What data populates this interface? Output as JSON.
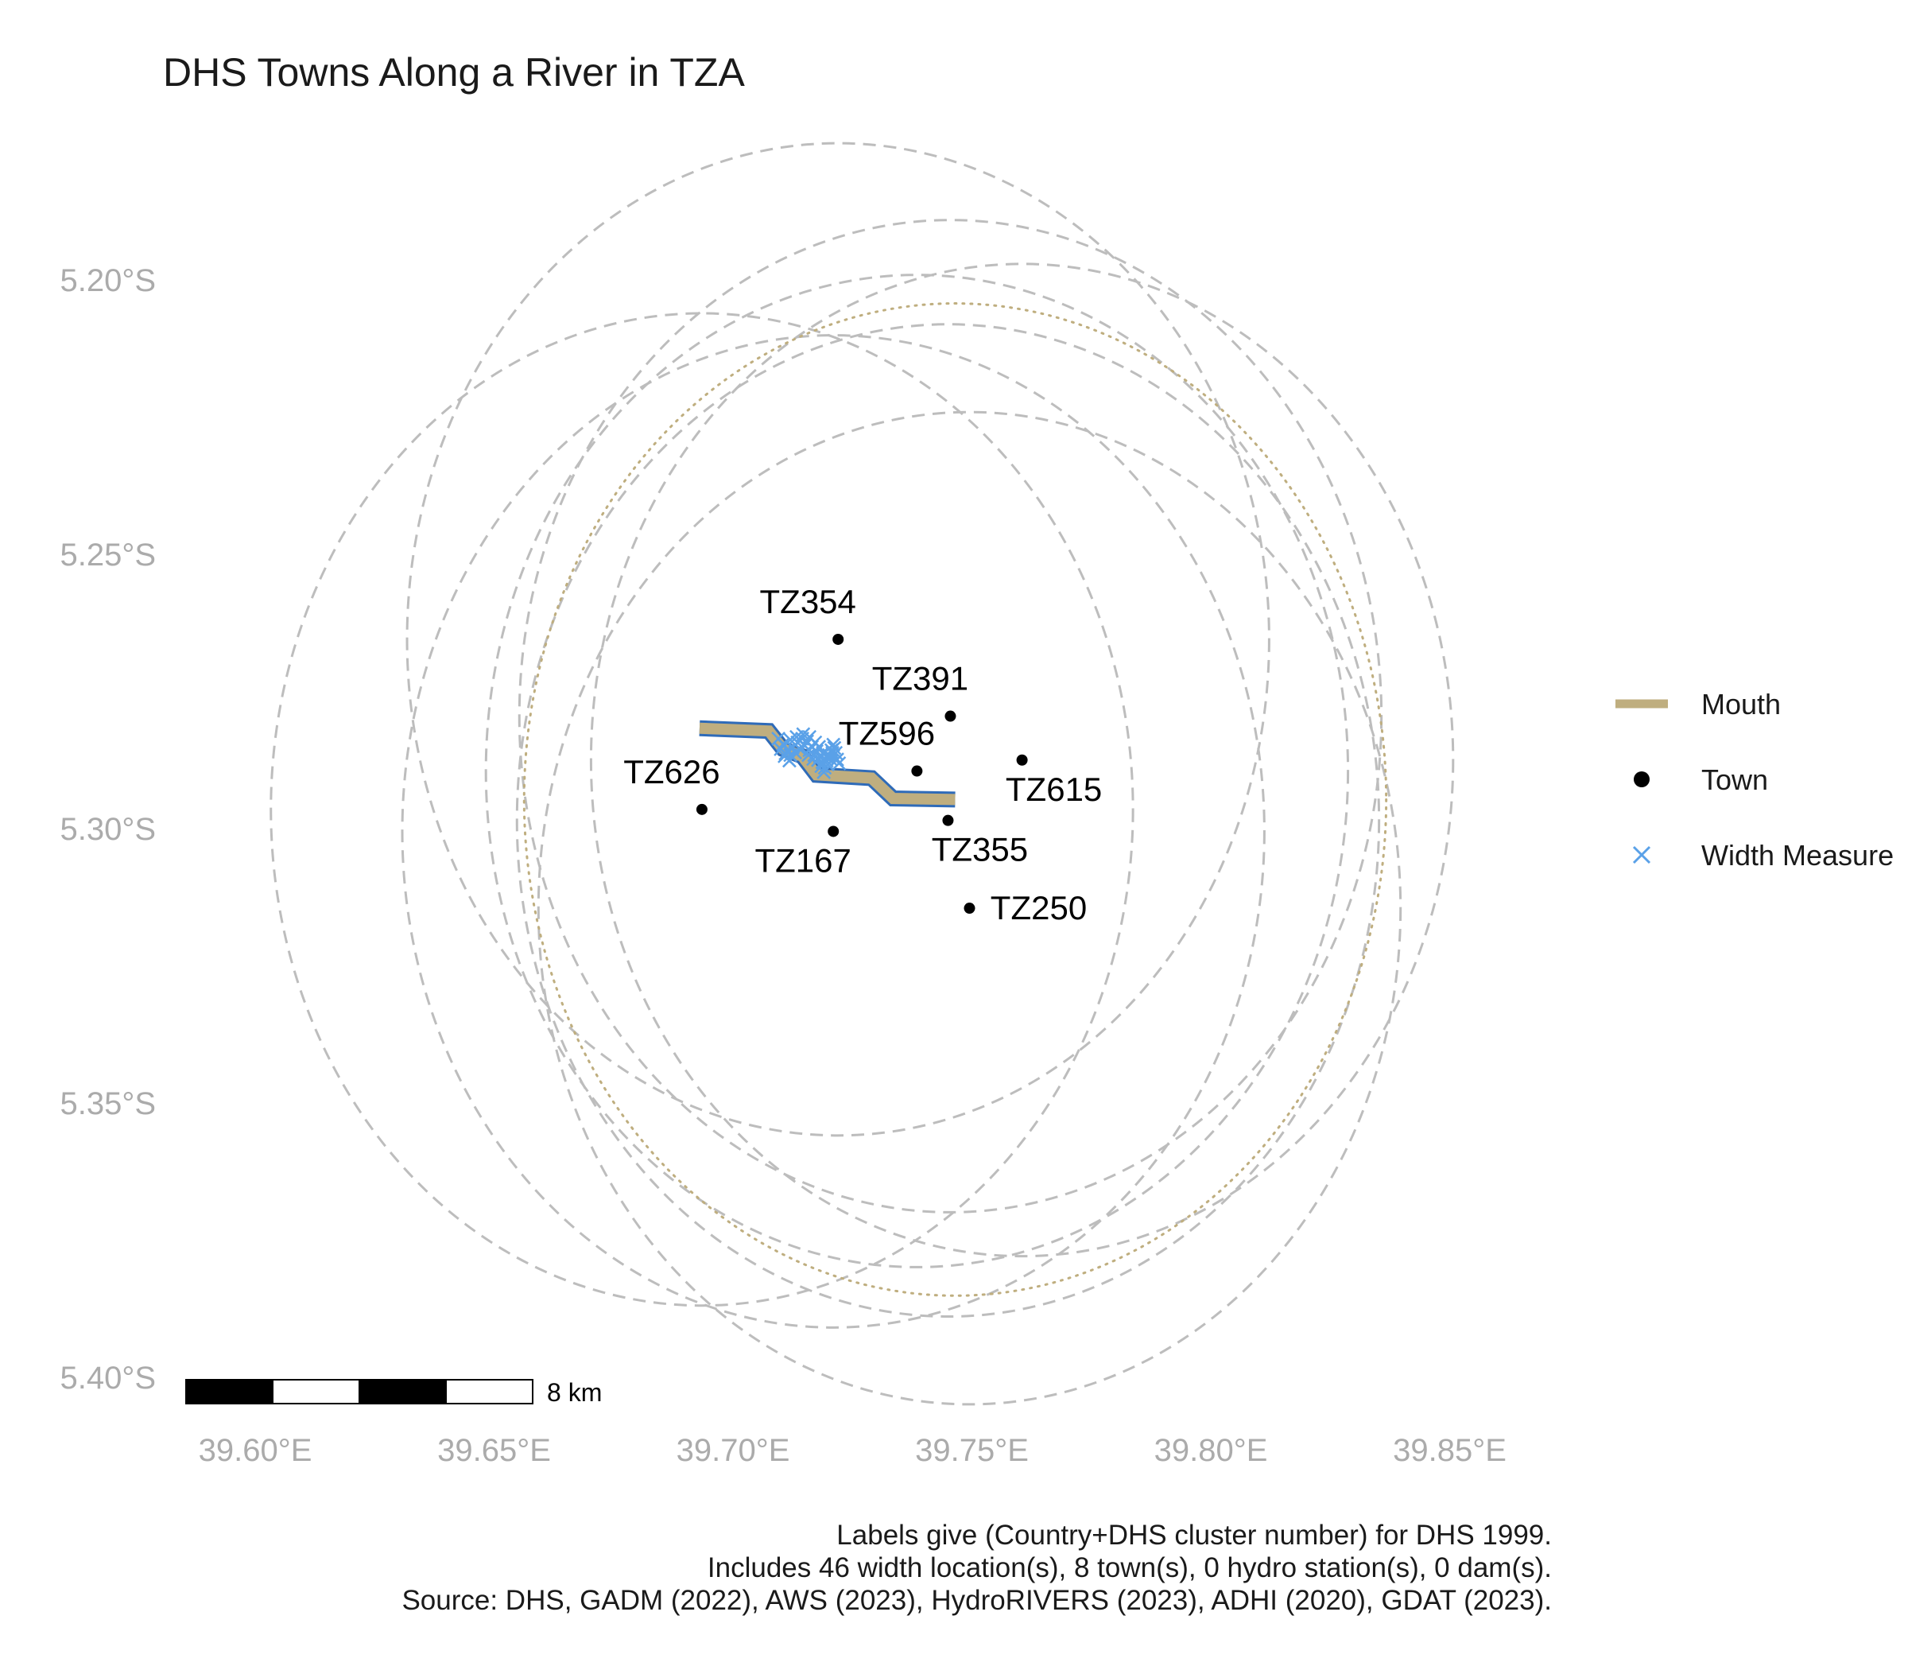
{
  "title": "DHS Towns Along a River in TZA",
  "chart_data": {
    "type": "map",
    "x_ticks": [
      {
        "value": 39.6,
        "label": "39.60°E"
      },
      {
        "value": 39.65,
        "label": "39.65°E"
      },
      {
        "value": 39.7,
        "label": "39.70°E"
      },
      {
        "value": 39.75,
        "label": "39.75°E"
      },
      {
        "value": 39.8,
        "label": "39.80°E"
      },
      {
        "value": 39.85,
        "label": "39.85°E"
      }
    ],
    "y_ticks": [
      {
        "value": -5.2,
        "label": "5.20°S"
      },
      {
        "value": -5.25,
        "label": "5.25°S"
      },
      {
        "value": -5.3,
        "label": "5.30°S"
      },
      {
        "value": -5.35,
        "label": "5.35°S"
      },
      {
        "value": -5.4,
        "label": "5.40°S"
      }
    ],
    "towns": [
      {
        "label": "TZ354",
        "lon": 39.722,
        "lat": -5.2655
      },
      {
        "label": "TZ391",
        "lon": 39.7455,
        "lat": -5.2795
      },
      {
        "label": "TZ596",
        "lon": 39.7385,
        "lat": -5.2895
      },
      {
        "label": "TZ615",
        "lon": 39.7605,
        "lat": -5.2875
      },
      {
        "label": "TZ626",
        "lon": 39.6935,
        "lat": -5.2965
      },
      {
        "label": "TZ167",
        "lon": 39.721,
        "lat": -5.3005
      },
      {
        "label": "TZ355",
        "lon": 39.745,
        "lat": -5.2985
      },
      {
        "label": "TZ250",
        "lon": 39.7495,
        "lat": -5.3145
      }
    ],
    "river_mouth": [
      [
        39.693,
        -5.2817
      ],
      [
        39.7075,
        -5.2822
      ],
      [
        39.7105,
        -5.2855
      ],
      [
        39.7145,
        -5.2868
      ],
      [
        39.7175,
        -5.2902
      ],
      [
        39.729,
        -5.2908
      ],
      [
        39.7335,
        -5.2945
      ],
      [
        39.7465,
        -5.2947
      ]
    ],
    "width_measures": [
      [
        39.7095,
        -5.2836
      ],
      [
        39.7105,
        -5.2846
      ],
      [
        39.7115,
        -5.2857
      ],
      [
        39.7125,
        -5.2852
      ],
      [
        39.7135,
        -5.2843
      ],
      [
        39.7145,
        -5.2836
      ],
      [
        39.7155,
        -5.2841
      ],
      [
        39.7165,
        -5.2851
      ],
      [
        39.7175,
        -5.2859
      ],
      [
        39.7182,
        -5.2869
      ],
      [
        39.7187,
        -5.2879
      ],
      [
        39.7192,
        -5.2889
      ],
      [
        39.7198,
        -5.2883
      ],
      [
        39.7203,
        -5.2872
      ],
      [
        39.7208,
        -5.2862
      ],
      [
        39.7212,
        -5.2853
      ],
      [
        39.71,
        -5.2855
      ],
      [
        39.711,
        -5.2863
      ],
      [
        39.712,
        -5.2866
      ],
      [
        39.713,
        -5.2861
      ],
      [
        39.714,
        -5.2855
      ],
      [
        39.715,
        -5.2849
      ],
      [
        39.716,
        -5.2857
      ],
      [
        39.717,
        -5.2866
      ],
      [
        39.7178,
        -5.2875
      ],
      [
        39.7185,
        -5.2886
      ],
      [
        39.719,
        -5.2897
      ],
      [
        39.7196,
        -5.2876
      ],
      [
        39.7201,
        -5.2866
      ],
      [
        39.7206,
        -5.2857
      ],
      [
        39.721,
        -5.2847
      ],
      [
        39.7215,
        -5.2862
      ],
      [
        39.712,
        -5.2838
      ],
      [
        39.7133,
        -5.2833
      ],
      [
        39.7147,
        -5.2828
      ],
      [
        39.716,
        -5.2833
      ],
      [
        39.7172,
        -5.2843
      ],
      [
        39.718,
        -5.2851
      ],
      [
        39.7188,
        -5.2862
      ],
      [
        39.7195,
        -5.2869
      ],
      [
        39.7218,
        -5.2874
      ],
      [
        39.7222,
        -5.2881
      ],
      [
        39.7108,
        -5.2868
      ],
      [
        39.7118,
        -5.2876
      ],
      [
        39.7158,
        -5.2866
      ],
      [
        39.7168,
        -5.2873
      ]
    ],
    "buffer_circles": [
      {
        "lon": 39.722,
        "lat": -5.2655,
        "r_km": 10
      },
      {
        "lon": 39.7455,
        "lat": -5.2795,
        "r_km": 10
      },
      {
        "lon": 39.7385,
        "lat": -5.2895,
        "r_km": 10
      },
      {
        "lon": 39.7605,
        "lat": -5.2875,
        "r_km": 10
      },
      {
        "lon": 39.6935,
        "lat": -5.2965,
        "r_km": 10
      },
      {
        "lon": 39.721,
        "lat": -5.3005,
        "r_km": 10
      },
      {
        "lon": 39.745,
        "lat": -5.2985,
        "r_km": 10
      },
      {
        "lon": 39.7495,
        "lat": -5.3145,
        "r_km": 10
      }
    ],
    "mouth_buffer": {
      "lon": 39.7465,
      "lat": -5.2947,
      "r_km": 10
    },
    "scale_bar": {
      "label": "8 km",
      "km": 8,
      "segments": 4
    },
    "colors": {
      "mouth": "#bfae7f",
      "town": "#000000",
      "width_measure": "#5aa1e8",
      "river": "#2f6bb8",
      "buffer": "#bdbdbd",
      "axis_text": "#ababab"
    }
  },
  "legend": [
    {
      "key": "mouth-line",
      "label": "Mouth"
    },
    {
      "key": "town-dot",
      "label": "Town"
    },
    {
      "key": "width-cross",
      "label": "Width Measure"
    }
  ],
  "caption": [
    "Labels give (Country+DHS cluster number) for DHS 1999.",
    "Includes 46 width location(s), 8 town(s), 0 hydro station(s), 0 dam(s).",
    "Source: DHS, GADM (2022), AWS (2023), HydroRIVERS (2023), ADHI (2020), GDAT (2023)."
  ]
}
